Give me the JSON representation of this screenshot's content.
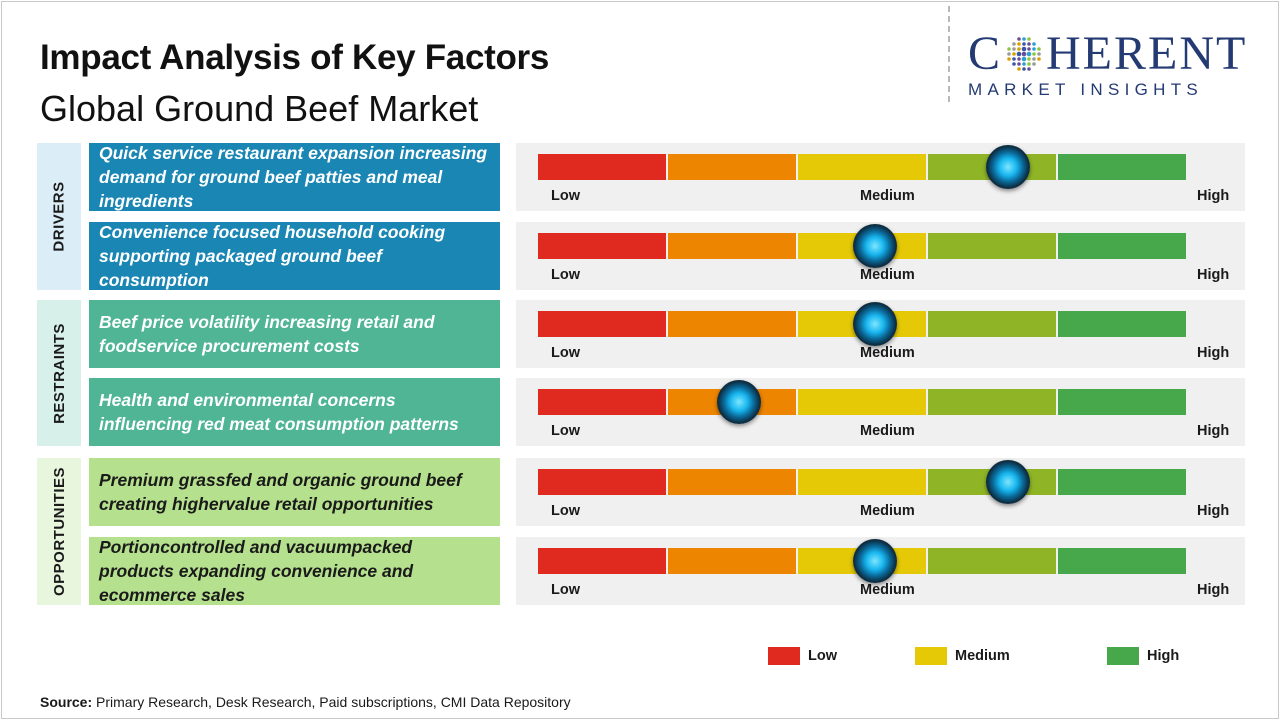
{
  "title": "Impact Analysis of Key Factors",
  "subtitle": "Global Ground Beef Market",
  "logo": {
    "main_left": "C",
    "main_right": "HERENT",
    "sub": "MARKET INSIGHTS"
  },
  "scale_labels": {
    "low": "Low",
    "medium": "Medium",
    "high": "High"
  },
  "colors": {
    "low_red": "#e02a20",
    "orange": "#ee8500",
    "medium_yellow": "#e5c907",
    "olive": "#8fb526",
    "high_green": "#46a84a",
    "drivers_bg": "#1a86b4",
    "restraints_bg": "#4fb594",
    "opportunities_bg": "#b5e08d",
    "drivers_cat_bg": "#dbeef7",
    "restraints_cat_bg": "#d8f0ea",
    "opportunities_cat_bg": "#e8f6dd"
  },
  "chart_data": {
    "type": "gauge",
    "scale": [
      "Low",
      "Medium",
      "High"
    ],
    "range": [
      0,
      1
    ],
    "categories": [
      {
        "name": "DRIVERS",
        "factors": [
          {
            "text": "Quick service restaurant expansion increasing demand for ground beef patties and meal ingredients",
            "level": 0.725
          },
          {
            "text": "Convenience focused household cooking supporting packaged ground beef consumption",
            "level": 0.52
          }
        ]
      },
      {
        "name": "RESTRAINTS",
        "factors": [
          {
            "text": "Beef price volatility increasing retail and foodservice procurement costs",
            "level": 0.52
          },
          {
            "text": "Health and environmental concerns influencing red meat consumption patterns",
            "level": 0.31
          }
        ]
      },
      {
        "name": "OPPORTUNITIES",
        "factors": [
          {
            "text": "Premium grassfed and organic ground beef creating highervalue retail opportunities",
            "level": 0.725
          },
          {
            "text": "Portioncontrolled and vacuumpacked products expanding convenience and ecommerce sales",
            "level": 0.52
          }
        ]
      }
    ]
  },
  "legend": [
    {
      "label": "Low",
      "color": "#e02a20"
    },
    {
      "label": "Medium",
      "color": "#e5c907"
    },
    {
      "label": "High",
      "color": "#46a84a"
    }
  ],
  "source": {
    "label": "Source:",
    "text": " Primary Research, Desk Research, Paid subscriptions, CMI Data Repository"
  }
}
